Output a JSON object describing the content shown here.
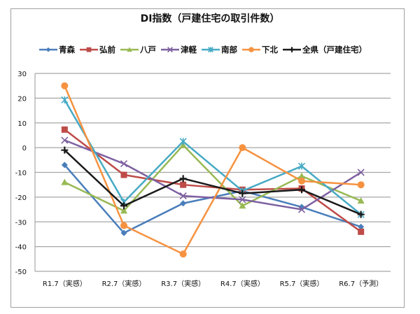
{
  "chart_data": {
    "type": "line",
    "title": "DI指数（戸建住宅の取引件数）",
    "categories": [
      "R1.7（実感）",
      "R2.7（実感）",
      "R3.7（実感）",
      "R4.7（実感）",
      "R5.7（実感）",
      "R6.7（予測）"
    ],
    "ylim": [
      -50,
      30
    ],
    "yticks": [
      30,
      20,
      10,
      0,
      -10,
      -20,
      -30,
      -40,
      -50
    ],
    "grid": true,
    "legend": "top",
    "series": [
      {
        "name": "青森",
        "color": "#4a7ebb",
        "marker": "diamond",
        "values": [
          -7,
          -34.5,
          -22.5,
          -17.5,
          -24,
          -32
        ]
      },
      {
        "name": "弘前",
        "color": "#be4b48",
        "marker": "square",
        "values": [
          7.3,
          -11,
          -15,
          -17,
          -16.5,
          -34
        ]
      },
      {
        "name": "八戸",
        "color": "#98b954",
        "marker": "triangle",
        "values": [
          -14,
          -25.5,
          1,
          -23.5,
          -11.5,
          -21.5
        ]
      },
      {
        "name": "津軽",
        "color": "#7d60a0",
        "marker": "x",
        "values": [
          3,
          -6.5,
          -19.5,
          -21,
          -25,
          -10
        ]
      },
      {
        "name": "南部",
        "color": "#46aac5",
        "marker": "star",
        "values": [
          19.3,
          -22,
          2.5,
          -17.5,
          -7.5,
          -27
        ]
      },
      {
        "name": "下北",
        "color": "#f69240",
        "marker": "circle",
        "values": [
          25,
          -31.5,
          -43,
          0,
          -13.5,
          -15
        ]
      },
      {
        "name": "全県（戸建住宅）",
        "color": "#1a1a1a",
        "marker": "plus",
        "values": [
          -1,
          -23.5,
          -12.5,
          -18.5,
          -17,
          -27
        ]
      }
    ]
  }
}
